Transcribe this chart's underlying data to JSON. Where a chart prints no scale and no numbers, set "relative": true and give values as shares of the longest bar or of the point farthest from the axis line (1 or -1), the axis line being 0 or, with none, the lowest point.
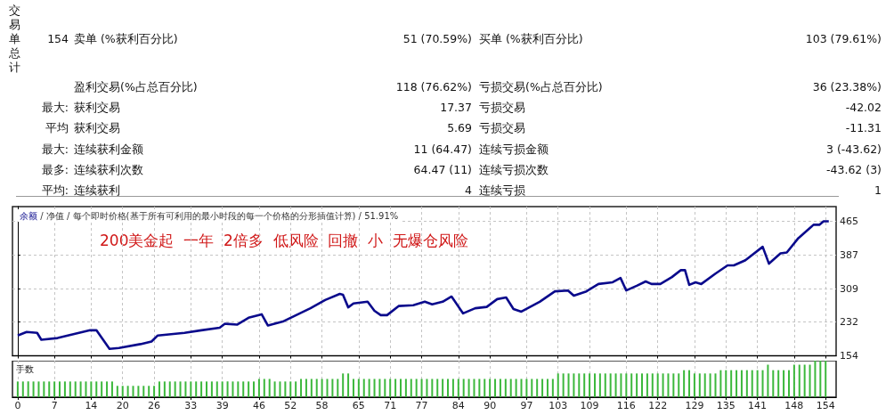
{
  "chart_data": [
    {
      "type": "other",
      "title": "交易单总计",
      "annotations": [
        "154",
        "卖单 (%获利百分比)",
        "51 (70.59%)",
        "买单 (%获利百分比)",
        "103 (79.61%)",
        null,
        "盈利交易(%占总百分比)",
        "118 (76.62%)",
        "亏损交易(%占总百分比)",
        "36 (23.38%)",
        "最大:",
        "获利交易",
        "17.37",
        "亏损交易",
        "-42.02",
        "平均",
        "获利交易",
        "5.69",
        "亏损交易",
        "-11.31",
        "最大:",
        "连续获利金额",
        "11 (64.47)",
        "连续亏损金额",
        "3 (-43.62)",
        "最多:",
        "连续获利次数",
        "64.47 (11)",
        "连续亏损次数",
        "-43.62 (3)",
        "平均:",
        "连续获利",
        "4",
        "连续亏损",
        "1"
      ]
    },
    {
      "type": "line",
      "subtitle": "/ 净值 / 每个即时价格(基于所有可利用的最小时段的每一个价格的分形插值计算) / 51.91%",
      "annotations": [
        "200美金起  一年  2倍多  低风险  回撤  小  无爆仓风险"
      ],
      "series": [
        {
          "name": "余额",
          "color": "#0a0a8c",
          "x": [
            0,
            1.7,
            3.7,
            4.5,
            7.6,
            13.8,
            15,
            17.5,
            19.3,
            23.4,
            25.5,
            26.7,
            31.8,
            35,
            38.5,
            39.5,
            41.8,
            44,
            46.5,
            47.7,
            50.7,
            55.8,
            58.6,
            61.4,
            62,
            63,
            64,
            66.7,
            68,
            69.2,
            70.4,
            72.6,
            75.4,
            77.6,
            79,
            81,
            82.7,
            84.9,
            87.2,
            89.4,
            91.4,
            93.1,
            94.5,
            96,
            99.5,
            102.4,
            104.9,
            106,
            108.4,
            110.7,
            113.4,
            114.9,
            116,
            118,
            119.7,
            120.8,
            122.5,
            124.7,
            126.4,
            127.2,
            128,
            129.2,
            130.3,
            133,
            135.3,
            136.5,
            138.7,
            142,
            143.2,
            145.4,
            146.6,
            148.8,
            151.7,
            152.8,
            153.6,
            154.6
          ],
          "values": [
            201,
            209,
            207,
            191,
            195,
            213,
            213,
            170,
            172,
            181,
            187,
            201,
            207,
            213,
            219,
            228,
            226,
            242,
            250,
            224,
            234,
            264,
            283,
            297,
            295,
            266,
            275,
            279,
            258,
            248,
            248,
            269,
            271,
            279,
            273,
            279,
            291,
            252,
            264,
            267,
            285,
            289,
            262,
            256,
            279,
            303,
            305,
            293,
            303,
            320,
            324,
            334,
            305,
            316,
            326,
            320,
            320,
            336,
            352,
            352,
            318,
            324,
            320,
            344,
            363,
            363,
            375,
            406,
            367,
            391,
            393,
            426,
            457,
            457,
            465,
            465
          ]
        }
      ],
      "xlim": [
        -1,
        156
      ],
      "xticks": [
        0,
        7,
        14,
        20,
        26,
        33,
        39,
        46,
        52,
        58,
        65,
        71,
        77,
        84,
        90,
        97,
        103,
        109,
        116,
        122,
        129,
        135,
        141,
        148,
        154
      ],
      "ylim": [
        154,
        499
      ],
      "yticks": [
        154,
        232,
        309,
        387,
        465
      ],
      "grid": true,
      "tick_labels": "y"
    },
    {
      "type": "bar",
      "title": "手数",
      "relative": true,
      "color": "#3cb83c",
      "x": [
        0,
        1,
        2,
        3,
        4,
        5,
        6,
        7,
        8,
        9,
        10,
        11,
        12,
        13,
        14,
        15,
        16,
        17,
        18,
        19,
        20,
        21,
        22,
        23,
        24,
        25,
        26,
        27,
        28,
        29,
        30,
        31,
        32,
        33,
        34,
        35,
        36,
        37,
        38,
        39,
        40,
        41,
        42,
        43,
        44,
        45,
        46,
        47,
        48,
        49,
        50,
        51,
        52,
        53,
        54,
        55,
        56,
        57,
        58,
        59,
        60,
        61,
        62,
        63,
        64,
        65,
        66,
        67,
        68,
        69,
        70,
        71,
        72,
        73,
        74,
        75,
        76,
        77,
        78,
        79,
        80,
        81,
        82,
        83,
        84,
        85,
        86,
        87,
        88,
        89,
        90,
        91,
        92,
        93,
        94,
        95,
        96,
        97,
        98,
        99,
        100,
        101,
        102,
        103,
        104,
        105,
        106,
        107,
        108,
        109,
        110,
        111,
        112,
        113,
        114,
        115,
        116,
        117,
        118,
        119,
        120,
        121,
        122,
        123,
        124,
        125,
        126,
        127,
        128,
        129,
        130,
        131,
        132,
        133,
        134,
        135,
        136,
        137,
        138,
        139,
        140,
        141,
        142,
        143,
        144,
        145,
        146,
        147,
        148,
        149,
        150,
        151,
        152,
        153,
        154
      ],
      "values": [
        0.43,
        0.43,
        0.43,
        0.43,
        0.43,
        0.43,
        0.43,
        0.43,
        0.43,
        0.43,
        0.43,
        0.43,
        0.43,
        0.43,
        0.43,
        0.43,
        0.43,
        0.43,
        0.43,
        0.31,
        0.31,
        0.31,
        0.31,
        0.31,
        0.31,
        0.31,
        0.31,
        0.43,
        0.43,
        0.43,
        0.43,
        0.43,
        0.43,
        0.43,
        0.43,
        0.43,
        0.43,
        0.43,
        0.43,
        0.43,
        0.43,
        0.43,
        0.43,
        0.43,
        0.43,
        0.43,
        0.5,
        0.5,
        0.5,
        0.43,
        0.43,
        0.43,
        0.43,
        0.43,
        0.5,
        0.5,
        0.5,
        0.5,
        0.5,
        0.5,
        0.5,
        0.5,
        0.65,
        0.65,
        0.5,
        0.5,
        0.5,
        0.5,
        0.5,
        0.5,
        0.5,
        0.5,
        0.5,
        0.5,
        0.5,
        0.5,
        0.5,
        0.5,
        0.5,
        0.5,
        0.5,
        0.5,
        0.5,
        0.5,
        0.5,
        0.5,
        0.5,
        0.5,
        0.5,
        0.5,
        0.5,
        0.5,
        0.5,
        0.5,
        0.5,
        0.5,
        0.5,
        0.5,
        0.5,
        0.5,
        0.5,
        0.5,
        0.5,
        0.65,
        0.65,
        0.65,
        0.65,
        0.65,
        0.65,
        0.65,
        0.65,
        0.65,
        0.65,
        0.65,
        0.65,
        0.65,
        0.65,
        0.65,
        0.65,
        0.65,
        0.65,
        0.65,
        0.65,
        0.65,
        0.65,
        0.65,
        0.65,
        0.74,
        0.74,
        0.65,
        0.65,
        0.65,
        0.65,
        0.65,
        0.74,
        0.74,
        0.74,
        0.74,
        0.74,
        0.74,
        0.74,
        0.74,
        0.74,
        0.89,
        0.74,
        0.74,
        0.74,
        0.74,
        0.89,
        0.89,
        0.89,
        0.89,
        1,
        1,
        1
      ],
      "xlim": [
        -1,
        156
      ],
      "xticks": [
        0,
        7,
        14,
        20,
        26,
        33,
        39,
        46,
        52,
        58,
        65,
        71,
        77,
        84,
        90,
        97,
        103,
        109,
        116,
        122,
        129,
        135,
        141,
        148,
        154
      ],
      "grid": "x",
      "tick_labels": "x"
    }
  ]
}
